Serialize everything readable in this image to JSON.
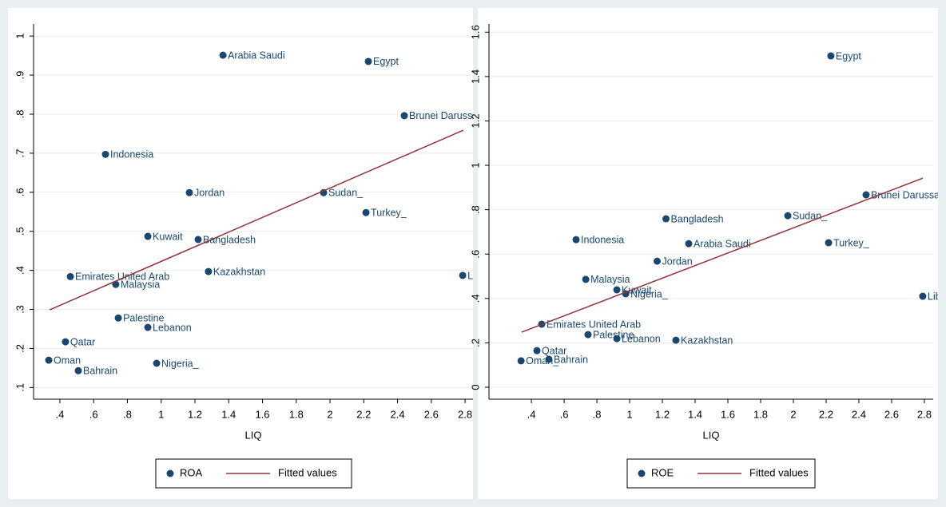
{
  "chart_data": [
    {
      "type": "scatter",
      "x_label": "LIQ",
      "grid": true,
      "xlim": [
        0.244,
        2.847
      ],
      "ylim": [
        0.07,
        1.031
      ],
      "xticks": [
        {
          "value": 0.4,
          "label": ".4"
        },
        {
          "value": 0.6,
          "label": ".6"
        },
        {
          "value": 0.8,
          "label": ".8"
        },
        1,
        1.2,
        1.4,
        1.6,
        1.8,
        2,
        2.2,
        2.4,
        2.6,
        2.8
      ],
      "yticks": [
        {
          "value": 0.1,
          "label": ".1"
        },
        {
          "value": 0.2,
          "label": ".2"
        },
        {
          "value": 0.3,
          "label": ".3"
        },
        {
          "value": 0.4,
          "label": ".4"
        },
        {
          "value": 0.5,
          "label": ".5"
        },
        {
          "value": 0.6,
          "label": ".6"
        },
        {
          "value": 0.7,
          "label": ".7"
        },
        {
          "value": 0.8,
          "label": ".8"
        },
        {
          "value": 0.9,
          "label": ".9"
        },
        1
      ],
      "series": [
        {
          "name": "ROA",
          "type": "scatter",
          "color": "#1a476f",
          "point_labels": [
            "Arabia Saudi",
            "Egypt",
            "Brunei Darussalam",
            "Indonesia",
            "Jordan",
            "Sudan_",
            "Turkey_",
            "Kuwait",
            "Bangladesh",
            "Kazakhstan",
            "Libya",
            "Emirates United Arab",
            "Malaysia",
            "Palestine",
            "Lebanon",
            "Qatar",
            "Oman",
            "Bahrain",
            "Nigeria_"
          ],
          "x": [
            1.366,
            2.227,
            2.44,
            0.67,
            1.167,
            1.962,
            2.213,
            0.921,
            1.219,
            1.28,
            2.786,
            0.462,
            0.731,
            0.746,
            0.921,
            0.433,
            0.334,
            0.509,
            0.973
          ],
          "values": [
            0.951,
            0.935,
            0.796,
            0.697,
            0.599,
            0.599,
            0.548,
            0.487,
            0.479,
            0.397,
            0.387,
            0.384,
            0.364,
            0.278,
            0.254,
            0.217,
            0.17,
            0.143,
            0.162
          ]
        },
        {
          "name": "Fitted values",
          "type": "line",
          "color": "#90353b",
          "x": [
            0.34,
            2.79
          ],
          "values": [
            0.299,
            0.759
          ]
        }
      ]
    },
    {
      "type": "scatter",
      "x_label": "LIQ",
      "grid": true,
      "xlim": [
        0.141,
        2.854
      ],
      "ylim": [
        -0.054,
        1.637
      ],
      "xticks": [
        {
          "value": 0.4,
          "label": ".4"
        },
        {
          "value": 0.6,
          "label": ".6"
        },
        {
          "value": 0.8,
          "label": ".8"
        },
        1,
        1.2,
        1.4,
        1.6,
        1.8,
        2,
        2.2,
        2.4,
        2.6,
        2.8
      ],
      "yticks": [
        0,
        {
          "value": 0.2,
          "label": ".2"
        },
        {
          "value": 0.4,
          "label": ".4"
        },
        {
          "value": 0.6,
          "label": ".6"
        },
        {
          "value": 0.8,
          "label": ".8"
        },
        1,
        1.2,
        1.4,
        1.6
      ],
      "series": [
        {
          "name": "ROE",
          "type": "scatter",
          "color": "#1a476f",
          "point_labels": [
            "Egypt",
            "Brunei Darussalam",
            "Sudan_",
            "Bangladesh",
            "Indonesia",
            "Arabia Saudi",
            "Turkey_",
            "Jordan",
            "Malaysia",
            "Kuwait",
            "Nigeria_",
            "Libya",
            "Emirates United Arab",
            "Palestine",
            "Lebanon",
            "Kazakhstan",
            "Qatar",
            "Oman_",
            "Bahrain"
          ],
          "x": [
            2.229,
            2.444,
            1.966,
            1.222,
            0.673,
            1.361,
            2.215,
            1.168,
            0.732,
            0.922,
            0.976,
            2.79,
            0.463,
            0.746,
            0.922,
            1.283,
            0.434,
            0.337,
            0.507
          ],
          "values": [
            1.493,
            0.867,
            0.773,
            0.759,
            0.665,
            0.647,
            0.651,
            0.568,
            0.486,
            0.439,
            0.421,
            0.41,
            0.284,
            0.237,
            0.219,
            0.212,
            0.165,
            0.119,
            0.126
          ]
        },
        {
          "name": "Fitted values",
          "type": "line",
          "color": "#90353b",
          "x": [
            0.34,
            2.79
          ],
          "values": [
            0.248,
            0.942
          ]
        }
      ]
    }
  ]
}
